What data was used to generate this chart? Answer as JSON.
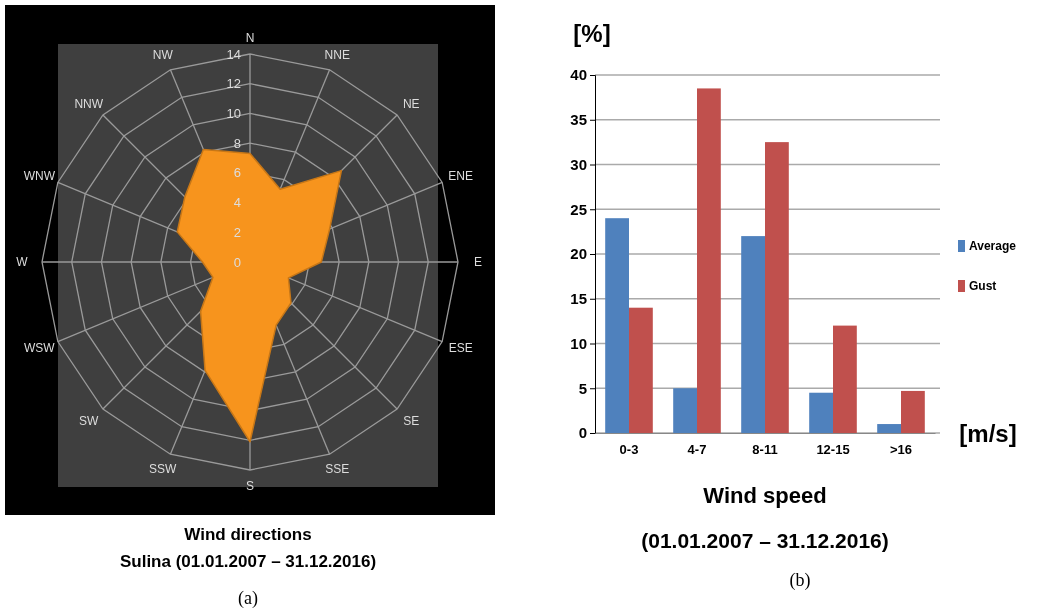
{
  "chart_data": [
    {
      "type": "radar",
      "title": "Wind directions",
      "subtitle": "Sulina  (01.01.2007 – 31.12.2016)",
      "annotations": [
        "(a)"
      ],
      "categories": [
        "N",
        "NNE",
        "NE",
        "ENE",
        "E",
        "ESE",
        "SE",
        "SSE",
        "S",
        "SSW",
        "SW",
        "WSW",
        "W",
        "WNW",
        "NNW",
        "NW"
      ],
      "series": [
        {
          "color": "#f7941d",
          "values": [
            7.3,
            5.3,
            8.7,
            5.8,
            4.8,
            2.8,
            3.9,
            4.6,
            12.1,
            7.9,
            4.7,
            2.7,
            3.2,
            5.3,
            6.2,
            8.2
          ]
        }
      ],
      "ylim": [
        0,
        14
      ],
      "yticks": [
        0,
        2,
        4,
        6,
        8,
        10,
        12,
        14
      ],
      "grid": true
    },
    {
      "type": "bar",
      "ylabel": "[%]",
      "xlabel": "Wind speed",
      "subtitle": "(01.01.2007 – 31.12.2016)",
      "annotations": [
        "[m/s]",
        "(b)"
      ],
      "categories": [
        "0-3",
        "4-7",
        "8-11",
        "12-15",
        ">16"
      ],
      "series": [
        {
          "name": "Average",
          "color": "#4f81bd",
          "values": [
            24,
            5,
            22,
            4.5,
            1
          ]
        },
        {
          "name": "Gust",
          "color": "#c0504d",
          "values": [
            14,
            38.5,
            32.5,
            12,
            4.7
          ]
        }
      ],
      "ylim": [
        0,
        40
      ],
      "yticks": [
        0,
        5,
        10,
        15,
        20,
        25,
        30,
        35,
        40
      ],
      "grid": "y",
      "legend": "right"
    }
  ]
}
